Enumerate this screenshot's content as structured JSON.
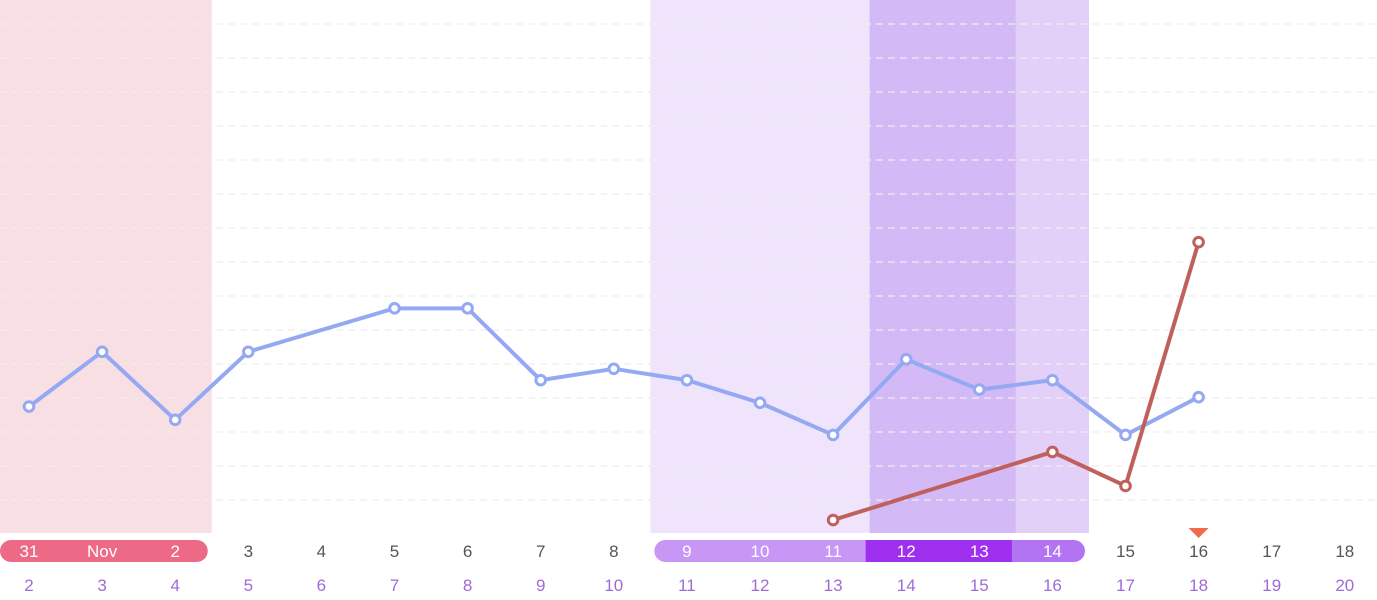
{
  "chart_data": {
    "type": "line",
    "x": [
      "31",
      "Nov",
      "2",
      "3",
      "4",
      "5",
      "6",
      "7",
      "8",
      "9",
      "10",
      "11",
      "12",
      "13",
      "14",
      "15",
      "16",
      "17",
      "18"
    ],
    "cycle_days": [
      "2",
      "3",
      "4",
      "5",
      "6",
      "7",
      "8",
      "9",
      "10",
      "11",
      "12",
      "13",
      "14",
      "15",
      "16",
      "17",
      "18",
      "19",
      "20"
    ],
    "series": [
      {
        "color": "#94a9f2",
        "values": [
          0.6,
          0.89,
          0.53,
          0.89,
          null,
          1.12,
          1.12,
          0.74,
          0.8,
          0.74,
          0.62,
          0.45,
          0.85,
          0.69,
          0.74,
          0.45,
          0.65,
          null,
          null
        ]
      },
      {
        "color": "#c0605d",
        "values": [
          null,
          null,
          null,
          null,
          null,
          null,
          null,
          null,
          null,
          null,
          null,
          0.0,
          null,
          null,
          0.36,
          0.18,
          1.47,
          null,
          null
        ]
      }
    ],
    "bands": [
      {
        "from_index": 0,
        "to_index": 2,
        "kind": "period",
        "color": "#f8dfe4"
      },
      {
        "from_index": 9,
        "to_index": 14,
        "kind": "fertile",
        "color": "#efe4fc"
      },
      {
        "from_index": 12,
        "to_index": 13,
        "kind": "ovulation",
        "color": "#d4b9f7"
      },
      {
        "from_index": 14,
        "to_index": 14,
        "kind": "fertile-end",
        "color": "#e2d0f9"
      }
    ],
    "date_pills": [
      {
        "from_index": 0,
        "to_index": 2,
        "color": "#ec6a86"
      },
      {
        "from_index": 9,
        "to_index": 11,
        "color": "#c896f5"
      },
      {
        "from_index": 12,
        "to_index": 13,
        "color": "#9f2fee"
      },
      {
        "from_index": 14,
        "to_index": 14,
        "color": "#b374f3"
      }
    ],
    "today_index": 16,
    "today_marker_color": "#ee6b4d",
    "ylim": [
      0,
      1.6
    ],
    "grid": true
  },
  "colors": {
    "date_text": "#555555",
    "pill_text": "#ffffff",
    "cycle_day_text": "#a16ad8",
    "grid": "#eeeeee"
  }
}
